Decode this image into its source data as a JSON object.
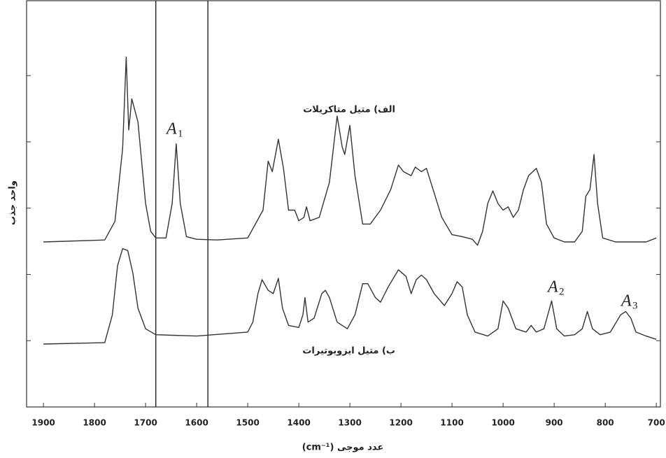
{
  "chart_data": {
    "type": "line",
    "x_label": "عدد موجی (cm⁻¹)",
    "y_label": "واحد جذب",
    "xlim": [
      1933,
      692
    ],
    "xticks": [
      1900,
      1800,
      1700,
      1600,
      1500,
      1400,
      1300,
      1200,
      1100,
      1000,
      900,
      800,
      700
    ],
    "ylim": [
      0,
      6.13
    ],
    "yticks": [
      1,
      2,
      3,
      4,
      5
    ],
    "vlines": [
      1680,
      1578
    ],
    "series": [
      {
        "name": "الف) متیل متاکریلات",
        "color": "#333333",
        "x": [
          1900,
          1780,
          1760,
          1745,
          1738,
          1733,
          1727,
          1715,
          1700,
          1690,
          1680,
          1660,
          1648,
          1640,
          1632,
          1620,
          1600,
          1560,
          1500,
          1470,
          1460,
          1452,
          1440,
          1430,
          1420,
          1408,
          1400,
          1390,
          1385,
          1378,
          1360,
          1340,
          1325,
          1315,
          1310,
          1300,
          1290,
          1275,
          1260,
          1240,
          1220,
          1205,
          1195,
          1180,
          1172,
          1160,
          1150,
          1135,
          1120,
          1100,
          1080,
          1060,
          1050,
          1040,
          1030,
          1020,
          1010,
          1000,
          990,
          980,
          970,
          960,
          950,
          935,
          925,
          915,
          900,
          880,
          860,
          845,
          838,
          830,
          822,
          815,
          805,
          780,
          750,
          720,
          700
        ],
        "values": [
          2.49,
          2.52,
          2.8,
          3.9,
          5.28,
          4.18,
          4.65,
          4.3,
          3.07,
          2.65,
          2.55,
          2.55,
          3.07,
          3.97,
          3.07,
          2.57,
          2.53,
          2.52,
          2.55,
          2.97,
          3.71,
          3.55,
          4.04,
          3.6,
          2.97,
          2.97,
          2.81,
          2.86,
          3.02,
          2.81,
          2.86,
          3.39,
          4.39,
          3.92,
          3.81,
          4.25,
          3.49,
          2.76,
          2.76,
          2.97,
          3.28,
          3.65,
          3.55,
          3.49,
          3.62,
          3.55,
          3.6,
          3.23,
          2.86,
          2.6,
          2.57,
          2.53,
          2.44,
          2.65,
          3.07,
          3.26,
          3.07,
          2.97,
          3.02,
          2.86,
          2.97,
          3.28,
          3.49,
          3.6,
          3.39,
          2.76,
          2.55,
          2.49,
          2.49,
          2.65,
          3.18,
          3.28,
          3.81,
          3.07,
          2.55,
          2.49,
          2.49,
          2.49,
          2.55
        ]
      },
      {
        "name": "ب) متیل ایزوبوتیرات",
        "color": "#333333",
        "x": [
          1900,
          1780,
          1765,
          1755,
          1745,
          1735,
          1725,
          1715,
          1700,
          1680,
          1600,
          1500,
          1490,
          1480,
          1472,
          1460,
          1450,
          1440,
          1432,
          1420,
          1400,
          1392,
          1388,
          1382,
          1370,
          1355,
          1348,
          1340,
          1325,
          1305,
          1290,
          1275,
          1265,
          1250,
          1240,
          1225,
          1205,
          1190,
          1180,
          1170,
          1160,
          1150,
          1135,
          1115,
          1100,
          1090,
          1080,
          1070,
          1055,
          1030,
          1010,
          1000,
          990,
          975,
          955,
          945,
          935,
          920,
          905,
          895,
          880,
          860,
          845,
          835,
          825,
          810,
          790,
          770,
          760,
          750,
          740,
          720,
          700
        ],
        "values": [
          0.95,
          0.97,
          1.39,
          2.13,
          2.39,
          2.36,
          2.02,
          1.49,
          1.18,
          1.09,
          1.07,
          1.13,
          1.28,
          1.71,
          1.92,
          1.76,
          1.71,
          1.94,
          1.49,
          1.23,
          1.2,
          1.39,
          1.65,
          1.28,
          1.34,
          1.71,
          1.76,
          1.65,
          1.28,
          1.18,
          1.39,
          1.86,
          1.86,
          1.65,
          1.58,
          1.81,
          2.07,
          1.97,
          1.71,
          1.92,
          1.99,
          1.92,
          1.71,
          1.53,
          1.71,
          1.89,
          1.81,
          1.39,
          1.13,
          1.07,
          1.18,
          1.6,
          1.49,
          1.18,
          1.13,
          1.23,
          1.13,
          1.18,
          1.6,
          1.18,
          1.07,
          1.09,
          1.18,
          1.44,
          1.18,
          1.09,
          1.13,
          1.39,
          1.44,
          1.34,
          1.13,
          1.07,
          1.02
        ]
      }
    ],
    "annotations": [
      {
        "text": "A",
        "sub": "1"
      },
      {
        "text": "A",
        "sub": "2"
      },
      {
        "text": "A",
        "sub": "3"
      }
    ]
  }
}
